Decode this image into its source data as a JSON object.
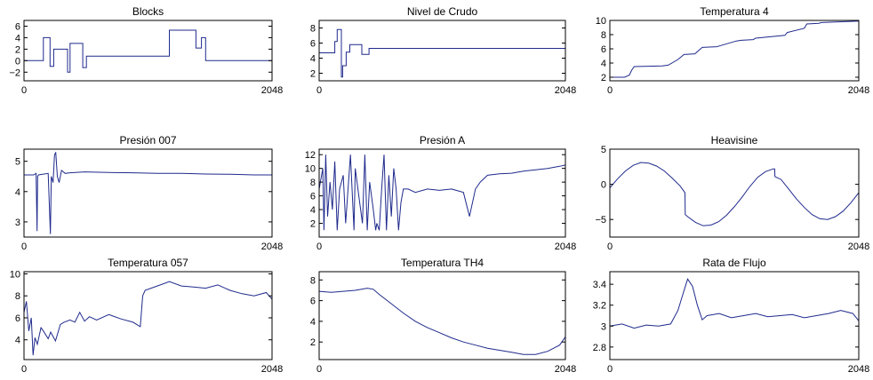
{
  "figure": {
    "background": "#ffffff",
    "axes_color": "#000000",
    "line_color": "#1f2a8c"
  },
  "chart_data": [
    {
      "type": "line",
      "title": "Blocks",
      "xlim": [
        0,
        2048
      ],
      "ylim": [
        -3.5,
        7
      ],
      "xticks": [
        0,
        2048
      ],
      "xticklabels": [
        "0",
        "2048"
      ],
      "yticks": [
        -2,
        0,
        2,
        4,
        6
      ],
      "yticklabels": [
        "−2",
        "0",
        "2",
        "4",
        "6"
      ],
      "series": [
        {
          "x": [
            0,
            160,
            160,
            215,
            215,
            245,
            245,
            360,
            360,
            380,
            380,
            410,
            410,
            485,
            485,
            515,
            515,
            640,
            640,
            745,
            745,
            900,
            900,
            1200,
            1200,
            1420,
            1420,
            1465,
            1465,
            1500,
            1500,
            1630,
            1630,
            2048
          ],
          "y": [
            0,
            0,
            4,
            4,
            -1,
            -1,
            2,
            2,
            -2,
            -2,
            3,
            3,
            3,
            3,
            -1.2,
            -1.2,
            0.8,
            0.8,
            0.8,
            0.8,
            0.8,
            0.8,
            0.8,
            0.8,
            5.3,
            5.3,
            2.2,
            2.2,
            4,
            4,
            0,
            0,
            0,
            0
          ]
        }
      ]
    },
    {
      "type": "line",
      "title": "Nivel de Crudo",
      "xlim": [
        0,
        2048
      ],
      "ylim": [
        1,
        9
      ],
      "xticks": [
        0,
        2048
      ],
      "xticklabels": [
        "0",
        "2048"
      ],
      "yticks": [
        2,
        4,
        6,
        8
      ],
      "yticklabels": [
        "2",
        "4",
        "6",
        "8"
      ],
      "series": [
        {
          "x": [
            0,
            130,
            130,
            150,
            150,
            185,
            185,
            195,
            195,
            225,
            225,
            255,
            255,
            355,
            355,
            415,
            415,
            440,
            440,
            2048
          ],
          "y": [
            4.7,
            4.7,
            6.2,
            6.2,
            7.8,
            7.8,
            1.5,
            1.5,
            3,
            3,
            4.8,
            4.8,
            5.8,
            5.8,
            4.5,
            4.5,
            5.3,
            5.3,
            5.3,
            5.3
          ]
        }
      ]
    },
    {
      "type": "line",
      "title": "Temperatura 4",
      "xlim": [
        0,
        2048
      ],
      "ylim": [
        1.5,
        10
      ],
      "xticks": [
        0,
        2048
      ],
      "xticklabels": [
        "0",
        "2048"
      ],
      "yticks": [
        2,
        4,
        6,
        8,
        10
      ],
      "yticklabels": [
        "2",
        "4",
        "6",
        "8",
        "10"
      ],
      "series": [
        {
          "x": [
            0,
            120,
            160,
            180,
            200,
            430,
            480,
            560,
            610,
            700,
            760,
            880,
            900,
            1040,
            1080,
            1180,
            1200,
            1440,
            1460,
            1600,
            1620,
            1720,
            1740,
            2048
          ],
          "y": [
            2,
            2,
            2.3,
            3,
            3.5,
            3.6,
            3.7,
            4.5,
            5.2,
            5.3,
            6.2,
            6.3,
            6.4,
            7.1,
            7.2,
            7.3,
            7.5,
            7.9,
            8.3,
            8.9,
            9.5,
            9.6,
            9.7,
            9.9
          ]
        }
      ]
    },
    {
      "type": "line",
      "title": "Presión 007",
      "xlim": [
        0,
        2048
      ],
      "ylim": [
        2.5,
        5.4
      ],
      "xticks": [
        0,
        2048
      ],
      "xticklabels": [
        "0",
        "2048"
      ],
      "yticks": [
        3,
        4,
        5
      ],
      "yticklabels": [
        "3",
        "4",
        "5"
      ],
      "series": [
        {
          "x": [
            0,
            80,
            100,
            108,
            112,
            120,
            200,
            218,
            225,
            240,
            252,
            262,
            275,
            290,
            310,
            340,
            380,
            500,
            700,
            900,
            1100,
            1300,
            1500,
            1700,
            1900,
            2048
          ],
          "y": [
            4.55,
            4.55,
            4.6,
            2.7,
            4.5,
            4.55,
            4.6,
            2.6,
            4.5,
            4.3,
            5.2,
            5.3,
            4.5,
            4.3,
            4.7,
            4.6,
            4.62,
            4.65,
            4.63,
            4.62,
            4.6,
            4.6,
            4.58,
            4.57,
            4.55,
            4.55
          ]
        }
      ]
    },
    {
      "type": "line",
      "title": "Presión A",
      "xlim": [
        0,
        2048
      ],
      "ylim": [
        0,
        12.8
      ],
      "xticks": [
        0,
        2048
      ],
      "xticklabels": [
        "0",
        "2048"
      ],
      "yticks": [
        2,
        4,
        6,
        8,
        10,
        12
      ],
      "yticklabels": [
        "2",
        "4",
        "6",
        "8",
        "10",
        "12"
      ],
      "series": [
        {
          "x": [
            0,
            30,
            40,
            55,
            70,
            90,
            110,
            130,
            150,
            170,
            200,
            220,
            260,
            290,
            300,
            330,
            360,
            380,
            400,
            420,
            450,
            470,
            480,
            500,
            520,
            540,
            560,
            580,
            600,
            620,
            640,
            660,
            680,
            700,
            740,
            800,
            900,
            1000,
            1100,
            1200,
            1250,
            1300,
            1340,
            1400,
            1500,
            1600,
            1700,
            1800,
            1900,
            2000,
            2048
          ],
          "y": [
            7,
            10,
            1,
            12,
            3,
            8,
            4,
            11,
            1,
            7,
            9,
            2,
            12,
            1,
            10,
            6,
            2,
            12,
            1,
            8,
            4,
            1,
            2,
            1,
            7,
            12,
            1,
            9,
            3,
            10,
            7,
            1,
            5,
            7,
            7,
            6.5,
            7,
            6.8,
            7,
            6.5,
            3,
            7,
            8,
            9,
            9.2,
            9.3,
            9.6,
            9.8,
            10,
            10.3,
            10.5
          ]
        }
      ]
    },
    {
      "type": "line",
      "title": "Heavisine",
      "xlim": [
        0,
        2048
      ],
      "ylim": [
        -7.5,
        5
      ],
      "xticks": [
        0,
        2048
      ],
      "xticklabels": [
        "0",
        "2048"
      ],
      "yticks": [
        -5,
        0,
        5
      ],
      "yticklabels": [
        "−5",
        "0",
        "5"
      ],
      "series": [
        {
          "x": [
            0,
            64,
            128,
            192,
            256,
            320,
            384,
            448,
            512,
            576,
            618,
            620,
            640,
            704,
            768,
            832,
            896,
            960,
            1024,
            1088,
            1152,
            1216,
            1280,
            1344,
            1356,
            1358,
            1408,
            1472,
            1536,
            1600,
            1664,
            1728,
            1792,
            1856,
            1920,
            1984,
            2048
          ],
          "y": [
            -0.5,
            0.8,
            1.9,
            2.7,
            3.1,
            3,
            2.6,
            1.9,
            0.9,
            -0.2,
            -1.2,
            -4.3,
            -4.6,
            -5.4,
            -5.9,
            -5.8,
            -5.3,
            -4.4,
            -3.2,
            -1.8,
            -0.3,
            1,
            1.8,
            2.2,
            2.2,
            1.1,
            0.7,
            -0.7,
            -2.1,
            -3.3,
            -4.3,
            -4.9,
            -5,
            -4.6,
            -3.8,
            -2.6,
            -1.2
          ]
        }
      ]
    },
    {
      "type": "line",
      "title": "Temperatura 057",
      "xlim": [
        0,
        2048
      ],
      "ylim": [
        2.2,
        10.2
      ],
      "xticks": [
        0,
        2048
      ],
      "xticklabels": [
        "0",
        "2048"
      ],
      "yticks": [
        4,
        6,
        8,
        10
      ],
      "yticklabels": [
        "4",
        "6",
        "8",
        "10"
      ],
      "series": [
        {
          "x": [
            0,
            20,
            40,
            60,
            75,
            90,
            110,
            140,
            160,
            200,
            220,
            260,
            300,
            330,
            380,
            420,
            460,
            500,
            540,
            600,
            700,
            800,
            900,
            960,
            980,
            1000,
            1100,
            1200,
            1300,
            1400,
            1500,
            1600,
            1700,
            1800,
            1900,
            2000,
            2048
          ],
          "y": [
            6.5,
            7.5,
            4.8,
            6,
            2.6,
            4.2,
            3.6,
            5.1,
            4.8,
            4.1,
            4.7,
            3.9,
            5.4,
            5.6,
            5.8,
            5.6,
            6.5,
            5.7,
            6.1,
            5.8,
            6.3,
            5.9,
            5.6,
            5.2,
            8,
            8.5,
            8.9,
            9.3,
            8.9,
            8.8,
            8.7,
            9,
            8.5,
            8.2,
            8,
            8.3,
            7.7
          ]
        }
      ]
    },
    {
      "type": "line",
      "title": "Temperatura TH4",
      "xlim": [
        0,
        2048
      ],
      "ylim": [
        0.3,
        8.8
      ],
      "xticks": [
        0,
        2048
      ],
      "xticklabels": [
        "0",
        "2048"
      ],
      "yticks": [
        2,
        4,
        6,
        8
      ],
      "yticklabels": [
        "2",
        "4",
        "6",
        "8"
      ],
      "series": [
        {
          "x": [
            0,
            100,
            200,
            300,
            400,
            450,
            500,
            600,
            700,
            800,
            900,
            1000,
            1100,
            1200,
            1300,
            1400,
            1500,
            1600,
            1700,
            1800,
            1900,
            2000,
            2048
          ],
          "y": [
            6.9,
            6.8,
            6.9,
            7,
            7.2,
            7.1,
            6.6,
            5.7,
            4.8,
            4,
            3.4,
            2.9,
            2.4,
            2,
            1.7,
            1.4,
            1.2,
            1,
            0.8,
            0.8,
            1.1,
            1.7,
            2.5
          ]
        }
      ]
    },
    {
      "type": "line",
      "title": "Rata de Flujo",
      "xlim": [
        0,
        2048
      ],
      "ylim": [
        2.68,
        3.52
      ],
      "xticks": [
        0,
        2048
      ],
      "xticklabels": [
        "0",
        "2048"
      ],
      "yticks": [
        2.8,
        3,
        3.2,
        3.4
      ],
      "yticklabels": [
        "2.8",
        "3",
        "3.2",
        "3.4"
      ],
      "series": [
        {
          "x": [
            0,
            100,
            200,
            300,
            400,
            500,
            560,
            600,
            640,
            680,
            720,
            760,
            800,
            900,
            1000,
            1100,
            1200,
            1300,
            1400,
            1500,
            1600,
            1700,
            1800,
            1900,
            2000,
            2048
          ],
          "y": [
            3,
            3.02,
            2.98,
            3.01,
            3,
            3.02,
            3.15,
            3.3,
            3.45,
            3.38,
            3.2,
            3.06,
            3.1,
            3.12,
            3.08,
            3.1,
            3.12,
            3.09,
            3.1,
            3.11,
            3.08,
            3.1,
            3.12,
            3.15,
            3.12,
            3.05
          ]
        }
      ]
    }
  ]
}
